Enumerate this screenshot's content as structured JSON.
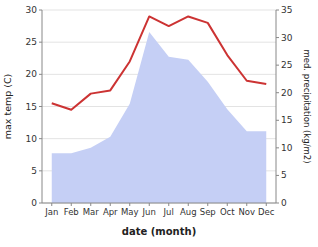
{
  "chart_data": {
    "type": "line",
    "categories": [
      "Jan",
      "Feb",
      "Mar",
      "Apr",
      "May",
      "Jun",
      "Jul",
      "Aug",
      "Sep",
      "Oct",
      "Nov",
      "Dec"
    ],
    "xlabel": "date (month)",
    "ylabel": "max temp (C)",
    "y2label": "med. precipitation (kg/m2)",
    "series": [
      {
        "type": "area",
        "axis": "y2",
        "color": "#c5cff5",
        "values": [
          9.0,
          9.0,
          10.0,
          12.0,
          18.0,
          31.0,
          26.5,
          26.0,
          22.0,
          17.0,
          13.0,
          13.0
        ]
      },
      {
        "type": "line",
        "color": "#cc3333",
        "values": [
          15.5,
          14.5,
          17.0,
          17.5,
          22.0,
          29.0,
          27.5,
          29.0,
          28.0,
          23.0,
          19.0,
          18.5
        ]
      }
    ],
    "ylim": [
      0,
      30
    ],
    "yticks": [
      0,
      5,
      10,
      15,
      20,
      25,
      30
    ],
    "y2lim": [
      0,
      35
    ],
    "y2ticks": [
      0,
      5,
      10,
      15,
      20,
      25,
      30,
      35
    ],
    "grid": true
  }
}
